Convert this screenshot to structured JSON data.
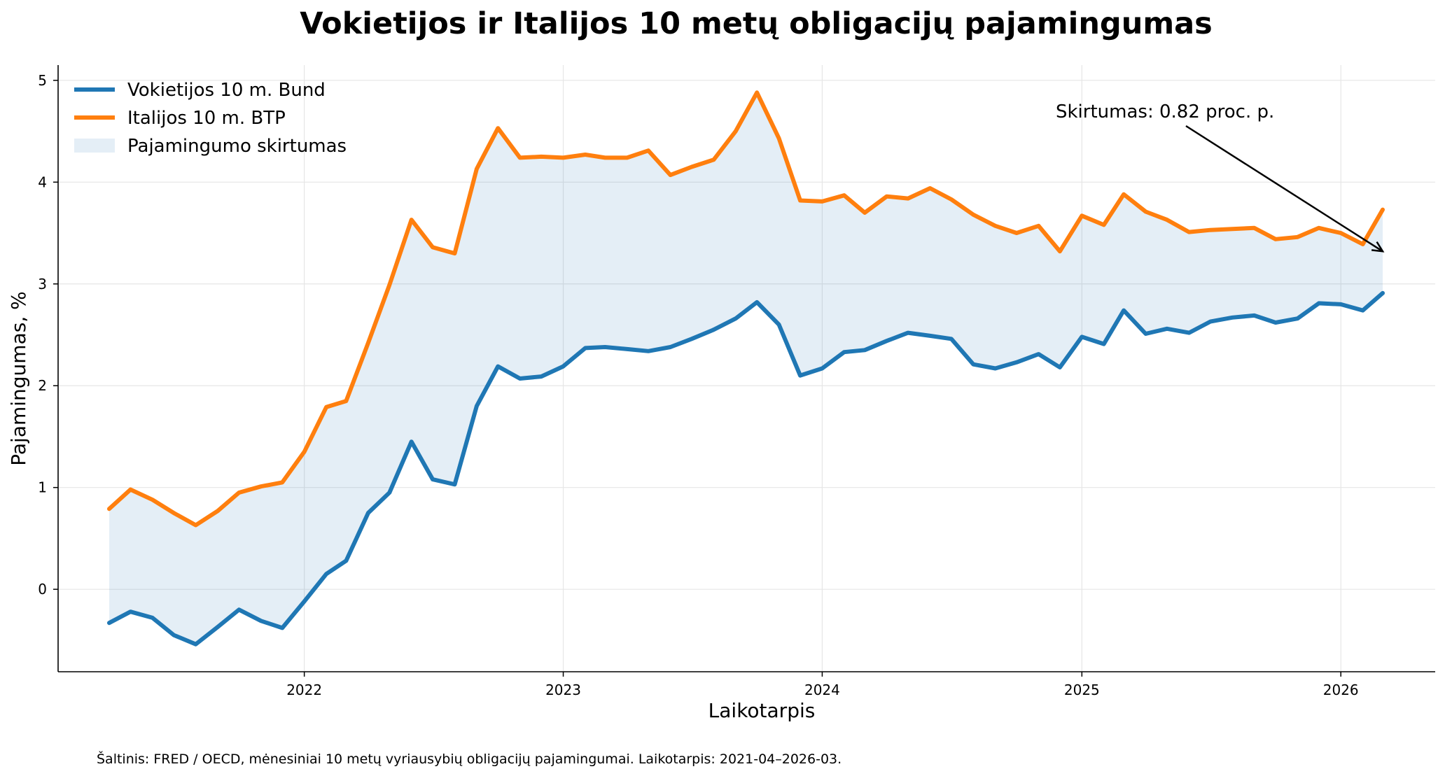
{
  "chart_data": {
    "type": "line",
    "title": "Vokietijos ir Italijos 10 metų obligacijų pajamingumas",
    "xlabel": "Laikotarpis",
    "ylabel": "Pajamingumas, %",
    "source": "Šaltinis: FRED / OECD, mėnesiniai 10 metų vyriausybių obligacijų pajamingumai. Laikotarpis: 2021-04–2026-03.",
    "x": [
      "2021-04",
      "2021-05",
      "2021-06",
      "2021-07",
      "2021-08",
      "2021-09",
      "2021-10",
      "2021-11",
      "2021-12",
      "2022-01",
      "2022-02",
      "2022-03",
      "2022-04",
      "2022-05",
      "2022-06",
      "2022-07",
      "2022-08",
      "2022-09",
      "2022-10",
      "2022-11",
      "2022-12",
      "2023-01",
      "2023-02",
      "2023-03",
      "2023-04",
      "2023-05",
      "2023-06",
      "2023-07",
      "2023-08",
      "2023-09",
      "2023-10",
      "2023-11",
      "2023-12",
      "2024-01",
      "2024-02",
      "2024-03",
      "2024-04",
      "2024-05",
      "2024-06",
      "2024-07",
      "2024-08",
      "2024-09",
      "2024-10",
      "2024-11",
      "2024-12",
      "2025-01",
      "2025-02",
      "2025-03",
      "2025-04",
      "2025-05",
      "2025-06",
      "2025-07",
      "2025-08",
      "2025-09",
      "2025-10",
      "2025-11",
      "2025-12",
      "2026-01",
      "2026-02",
      "2026-03"
    ],
    "series": [
      {
        "name": "Vokietijos 10 m. Bund",
        "color": "#1f77b4",
        "values": [
          -0.33,
          -0.22,
          -0.28,
          -0.45,
          -0.54,
          -0.37,
          -0.2,
          -0.31,
          -0.38,
          -0.12,
          0.15,
          0.28,
          0.75,
          0.95,
          1.45,
          1.08,
          1.03,
          1.8,
          2.19,
          2.07,
          2.09,
          2.19,
          2.37,
          2.38,
          2.36,
          2.34,
          2.38,
          2.46,
          2.55,
          2.66,
          2.82,
          2.6,
          2.1,
          2.17,
          2.33,
          2.35,
          2.44,
          2.52,
          2.49,
          2.46,
          2.21,
          2.17,
          2.23,
          2.31,
          2.18,
          2.48,
          2.41,
          2.74,
          2.51,
          2.56,
          2.52,
          2.63,
          2.67,
          2.69,
          2.62,
          2.66,
          2.81,
          2.8,
          2.74,
          2.91
        ]
      },
      {
        "name": "Italijos 10 m. BTP",
        "color": "#ff7f0e",
        "values": [
          0.79,
          0.98,
          0.88,
          0.75,
          0.63,
          0.77,
          0.95,
          1.01,
          1.05,
          1.35,
          1.79,
          1.85,
          2.42,
          2.99,
          3.63,
          3.36,
          3.3,
          4.13,
          4.53,
          4.24,
          4.25,
          4.24,
          4.27,
          4.24,
          4.24,
          4.31,
          4.07,
          4.15,
          4.22,
          4.5,
          4.88,
          4.43,
          3.82,
          3.81,
          3.87,
          3.7,
          3.86,
          3.84,
          3.94,
          3.83,
          3.68,
          3.57,
          3.5,
          3.57,
          3.32,
          3.67,
          3.58,
          3.88,
          3.71,
          3.63,
          3.51,
          3.53,
          3.54,
          3.55,
          3.44,
          3.46,
          3.55,
          3.5,
          3.39,
          3.73
        ]
      }
    ],
    "fill_label": "Pajamingumo skirtumas",
    "fill_color": "#1f77b4",
    "xticks": [
      "2022",
      "2023",
      "2024",
      "2025",
      "2026"
    ],
    "yticks": [
      "0",
      "1",
      "2",
      "3",
      "4",
      "5"
    ],
    "ylim": [
      -0.81,
      5.15
    ],
    "xlim": [
      "2021-01-19",
      "2026-05-14"
    ],
    "grid": true,
    "legend_position": "top-left",
    "annotation": {
      "text": "Skirtumas: 0.82 proc. p.",
      "target_x": "2026-03",
      "target_y": 3.32
    }
  }
}
